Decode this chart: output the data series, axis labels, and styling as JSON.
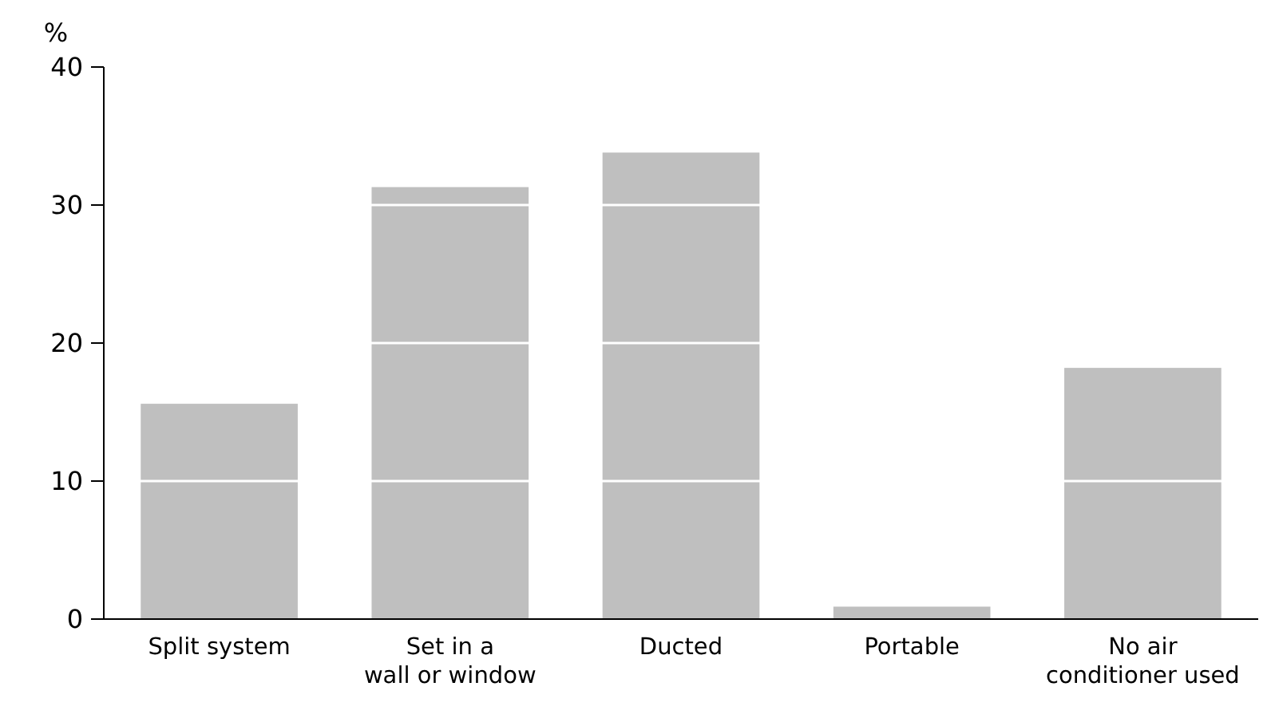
{
  "chart_data": {
    "type": "bar",
    "ylabel": "%",
    "categories": [
      "Split system",
      "Set in a\nwall or window",
      "Ducted",
      "Portable",
      "No air\nconditioner used"
    ],
    "values": [
      15.6,
      31.3,
      33.8,
      0.9,
      18.2
    ],
    "color": "#bfbfbf",
    "ylim": [
      0,
      40
    ],
    "yticks": [
      0,
      10,
      20,
      30,
      40
    ],
    "grid": "y"
  }
}
